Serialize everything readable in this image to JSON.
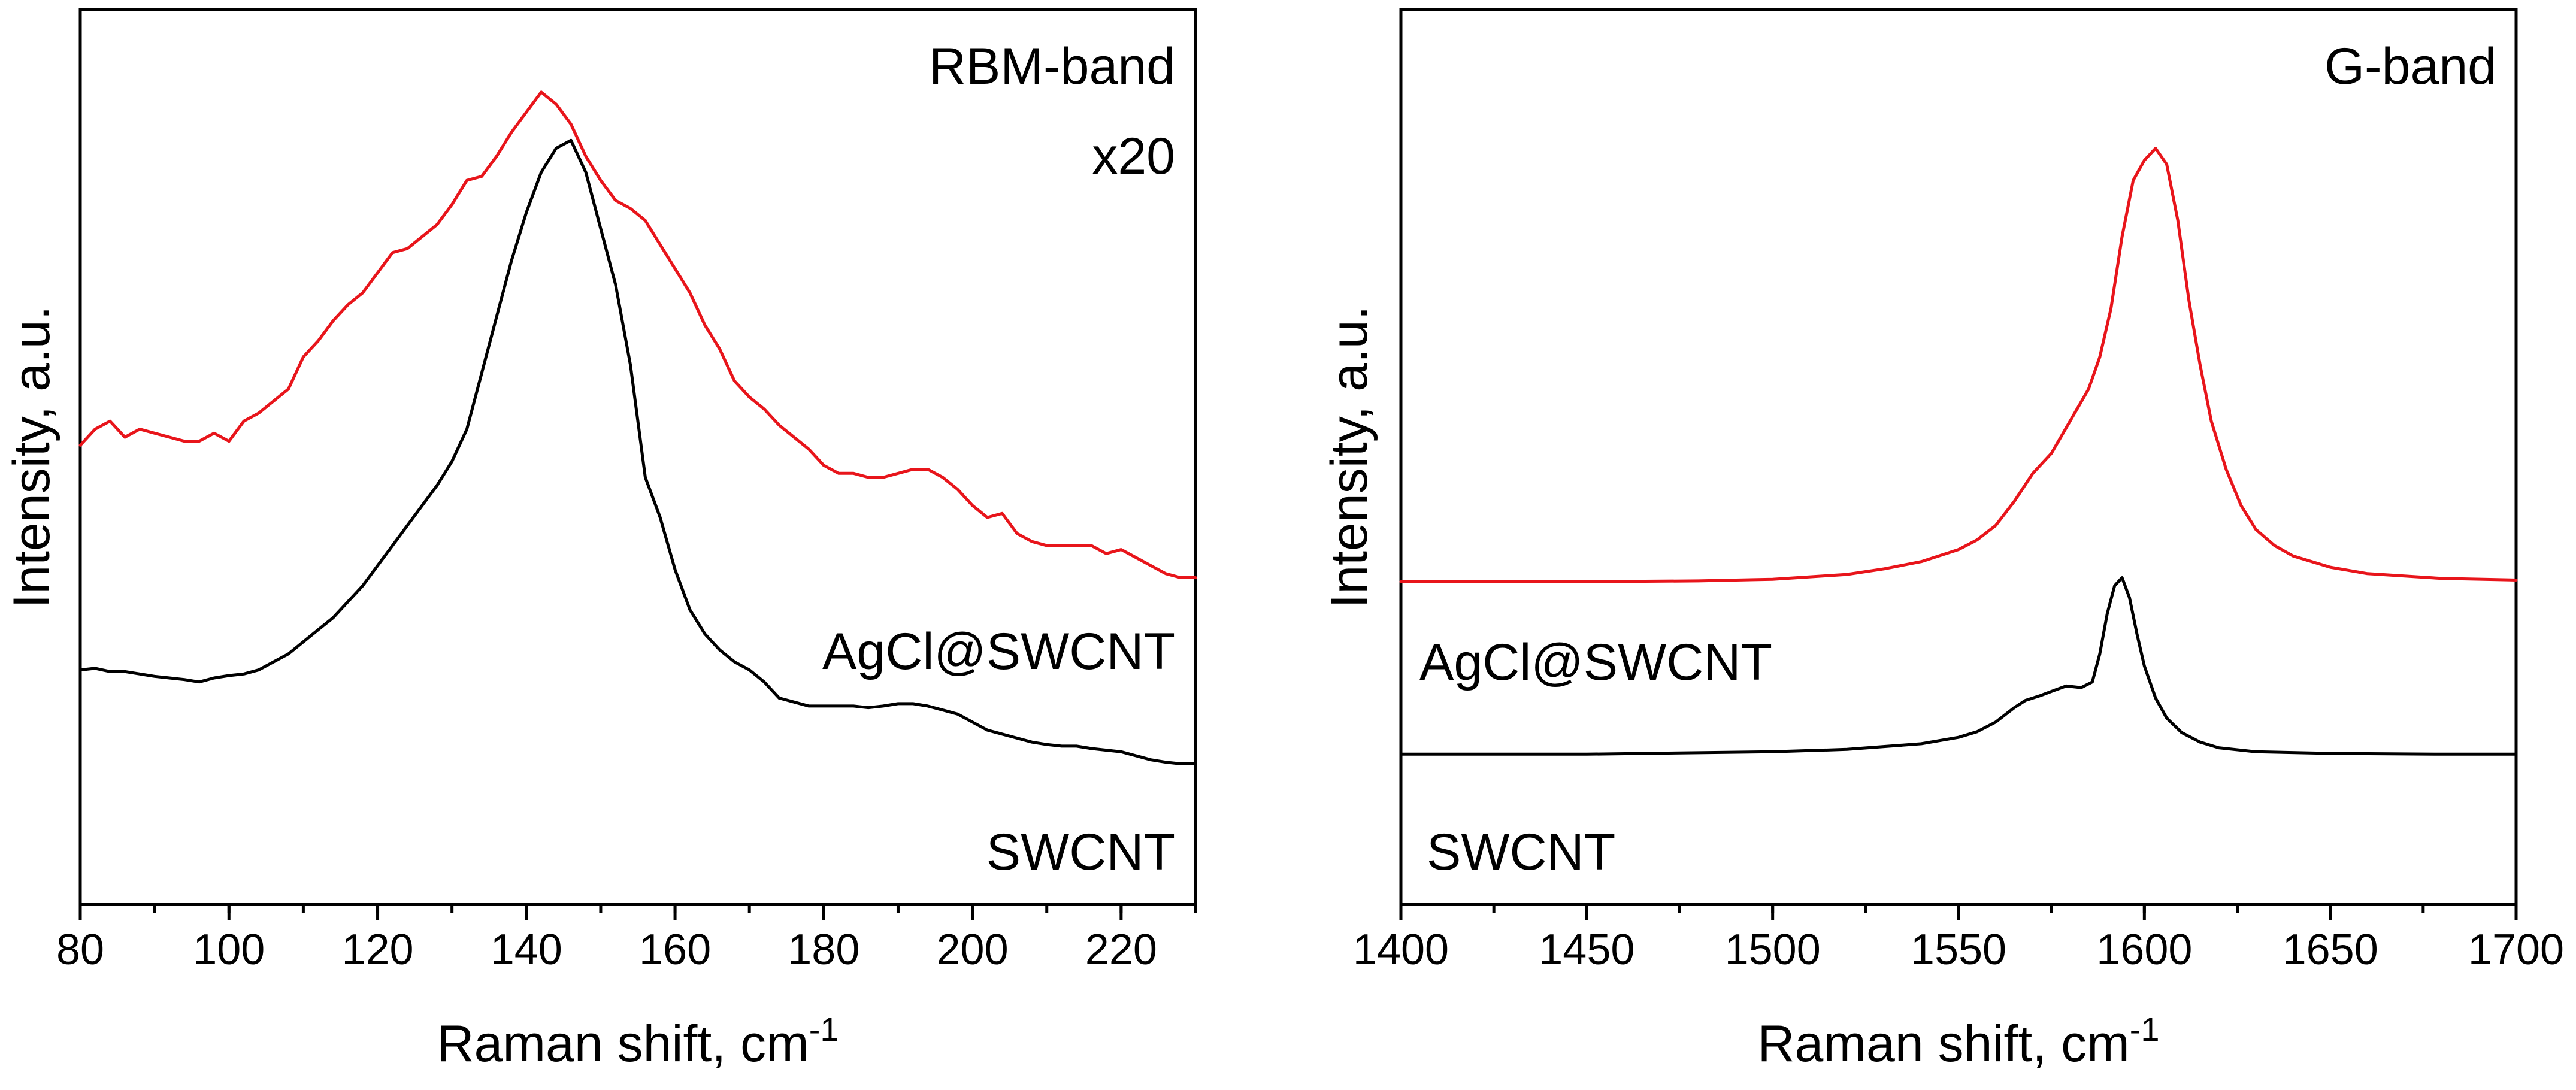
{
  "chart_data": [
    {
      "type": "line",
      "panel": "left",
      "xlabel": "Raman shift, cm",
      "xlabel_superscript": "-1",
      "ylabel": "Intensity, a.u.",
      "xlim": [
        80,
        230
      ],
      "ylim": [
        0,
        100
      ],
      "x_ticks": [
        80,
        100,
        120,
        140,
        160,
        180,
        200,
        220
      ],
      "y_ticks_shown": false,
      "annotations": [
        "RBM-band",
        "x20"
      ],
      "series": [
        {
          "name": "AgCl@SWCNT",
          "color": "#e8151b",
          "points": [
            [
              80,
              49
            ],
            [
              82,
              51
            ],
            [
              84,
              52
            ],
            [
              86,
              50
            ],
            [
              88,
              51
            ],
            [
              90,
              50.5
            ],
            [
              92,
              50
            ],
            [
              94,
              49.5
            ],
            [
              96,
              49.5
            ],
            [
              98,
              50.5
            ],
            [
              100,
              49.5
            ],
            [
              102,
              52
            ],
            [
              104,
              53
            ],
            [
              106,
              54.5
            ],
            [
              108,
              56
            ],
            [
              110,
              60
            ],
            [
              112,
              62
            ],
            [
              114,
              64.5
            ],
            [
              116,
              66.5
            ],
            [
              118,
              68
            ],
            [
              120,
              70.5
            ],
            [
              122,
              73
            ],
            [
              124,
              73.5
            ],
            [
              126,
              75
            ],
            [
              128,
              76.5
            ],
            [
              130,
              79
            ],
            [
              132,
              82
            ],
            [
              134,
              82.5
            ],
            [
              136,
              85
            ],
            [
              138,
              88
            ],
            [
              140,
              90.5
            ],
            [
              142,
              93
            ],
            [
              144,
              91.5
            ],
            [
              146,
              89
            ],
            [
              148,
              85
            ],
            [
              150,
              82
            ],
            [
              152,
              79.5
            ],
            [
              154,
              78.5
            ],
            [
              156,
              77
            ],
            [
              158,
              74
            ],
            [
              160,
              71
            ],
            [
              162,
              68
            ],
            [
              164,
              64
            ],
            [
              166,
              61
            ],
            [
              168,
              57
            ],
            [
              170,
              55
            ],
            [
              172,
              53.5
            ],
            [
              174,
              51.5
            ],
            [
              176,
              50
            ],
            [
              178,
              48.5
            ],
            [
              180,
              46.5
            ],
            [
              182,
              45.5
            ],
            [
              184,
              45.5
            ],
            [
              186,
              45
            ],
            [
              188,
              45
            ],
            [
              190,
              45.5
            ],
            [
              192,
              46
            ],
            [
              194,
              46
            ],
            [
              196,
              45
            ],
            [
              198,
              43.5
            ],
            [
              200,
              41.5
            ],
            [
              202,
              40
            ],
            [
              204,
              40.5
            ],
            [
              206,
              38
            ],
            [
              208,
              37
            ],
            [
              210,
              36.5
            ],
            [
              212,
              36.5
            ],
            [
              214,
              36.5
            ],
            [
              216,
              36.5
            ],
            [
              218,
              35.5
            ],
            [
              220,
              36
            ],
            [
              222,
              35
            ],
            [
              224,
              34
            ],
            [
              226,
              33
            ],
            [
              228,
              32.5
            ],
            [
              230,
              32.5
            ]
          ]
        },
        {
          "name": "SWCNT",
          "color": "#000000",
          "points": [
            [
              80,
              21
            ],
            [
              82,
              21.2
            ],
            [
              84,
              20.8
            ],
            [
              86,
              20.8
            ],
            [
              88,
              20.5
            ],
            [
              90,
              20.2
            ],
            [
              92,
              20
            ],
            [
              94,
              19.8
            ],
            [
              96,
              19.5
            ],
            [
              98,
              20
            ],
            [
              100,
              20.3
            ],
            [
              102,
              20.5
            ],
            [
              104,
              21
            ],
            [
              106,
              22
            ],
            [
              108,
              23
            ],
            [
              110,
              24.5
            ],
            [
              112,
              26
            ],
            [
              114,
              27.5
            ],
            [
              116,
              29.5
            ],
            [
              118,
              31.5
            ],
            [
              120,
              34
            ],
            [
              122,
              36.5
            ],
            [
              124,
              39
            ],
            [
              126,
              41.5
            ],
            [
              128,
              44
            ],
            [
              130,
              47
            ],
            [
              132,
              51
            ],
            [
              134,
              58
            ],
            [
              136,
              65
            ],
            [
              138,
              72
            ],
            [
              140,
              78
            ],
            [
              142,
              83
            ],
            [
              144,
              86
            ],
            [
              146,
              87
            ],
            [
              148,
              83
            ],
            [
              150,
              76
            ],
            [
              152,
              69
            ],
            [
              154,
              59
            ],
            [
              156,
              45
            ],
            [
              158,
              40
            ],
            [
              160,
              33.5
            ],
            [
              162,
              28.5
            ],
            [
              164,
              25.5
            ],
            [
              166,
              23.5
            ],
            [
              168,
              22
            ],
            [
              170,
              21
            ],
            [
              172,
              19.5
            ],
            [
              174,
              17.5
            ],
            [
              176,
              17
            ],
            [
              178,
              16.5
            ],
            [
              180,
              16.5
            ],
            [
              182,
              16.5
            ],
            [
              184,
              16.5
            ],
            [
              186,
              16.3
            ],
            [
              188,
              16.5
            ],
            [
              190,
              16.8
            ],
            [
              192,
              16.8
            ],
            [
              194,
              16.5
            ],
            [
              196,
              16
            ],
            [
              198,
              15.5
            ],
            [
              200,
              14.5
            ],
            [
              202,
              13.5
            ],
            [
              204,
              13
            ],
            [
              206,
              12.5
            ],
            [
              208,
              12
            ],
            [
              210,
              11.7
            ],
            [
              212,
              11.5
            ],
            [
              214,
              11.5
            ],
            [
              216,
              11.2
            ],
            [
              218,
              11
            ],
            [
              220,
              10.8
            ],
            [
              222,
              10.3
            ],
            [
              224,
              9.8
            ],
            [
              226,
              9.5
            ],
            [
              228,
              9.3
            ],
            [
              230,
              9.3
            ]
          ]
        }
      ]
    },
    {
      "type": "line",
      "panel": "right",
      "xlabel": "Raman shift, cm",
      "xlabel_superscript": "-1",
      "ylabel": "Intensity, a.u.",
      "xlim": [
        1400,
        1700
      ],
      "ylim": [
        0,
        100
      ],
      "x_ticks": [
        1400,
        1450,
        1500,
        1550,
        1600,
        1650,
        1700
      ],
      "y_ticks_shown": false,
      "annotations": [
        "G-band"
      ],
      "series": [
        {
          "name": "AgCl@SWCNT",
          "color": "#e8151b",
          "points": [
            [
              1400,
              32
            ],
            [
              1450,
              32
            ],
            [
              1480,
              32.1
            ],
            [
              1500,
              32.3
            ],
            [
              1520,
              32.9
            ],
            [
              1530,
              33.6
            ],
            [
              1540,
              34.5
            ],
            [
              1550,
              36
            ],
            [
              1555,
              37.2
            ],
            [
              1560,
              39
            ],
            [
              1565,
              42
            ],
            [
              1570,
              45.5
            ],
            [
              1575,
              48
            ],
            [
              1580,
              52
            ],
            [
              1585,
              56
            ],
            [
              1588,
              60
            ],
            [
              1591,
              66
            ],
            [
              1594,
              75
            ],
            [
              1597,
              82
            ],
            [
              1600,
              84.5
            ],
            [
              1603,
              86
            ],
            [
              1606,
              84
            ],
            [
              1609,
              77
            ],
            [
              1612,
              67
            ],
            [
              1615,
              59
            ],
            [
              1618,
              52
            ],
            [
              1622,
              46
            ],
            [
              1626,
              41.5
            ],
            [
              1630,
              38.5
            ],
            [
              1635,
              36.5
            ],
            [
              1640,
              35.2
            ],
            [
              1650,
              33.8
            ],
            [
              1660,
              33
            ],
            [
              1680,
              32.4
            ],
            [
              1700,
              32.2
            ]
          ]
        },
        {
          "name": "SWCNT",
          "color": "#000000",
          "points": [
            [
              1400,
              10.5
            ],
            [
              1450,
              10.5
            ],
            [
              1500,
              10.8
            ],
            [
              1520,
              11.1
            ],
            [
              1540,
              11.8
            ],
            [
              1550,
              12.6
            ],
            [
              1555,
              13.3
            ],
            [
              1560,
              14.5
            ],
            [
              1565,
              16.3
            ],
            [
              1568,
              17.2
            ],
            [
              1572,
              17.8
            ],
            [
              1576,
              18.5
            ],
            [
              1579,
              19
            ],
            [
              1583,
              18.8
            ],
            [
              1586,
              19.5
            ],
            [
              1588,
              23
            ],
            [
              1590,
              28
            ],
            [
              1592,
              31.5
            ],
            [
              1594,
              32.5
            ],
            [
              1596,
              30
            ],
            [
              1598,
              25.5
            ],
            [
              1600,
              21.5
            ],
            [
              1603,
              17.5
            ],
            [
              1606,
              15
            ],
            [
              1610,
              13.2
            ],
            [
              1615,
              12
            ],
            [
              1620,
              11.3
            ],
            [
              1630,
              10.8
            ],
            [
              1650,
              10.6
            ],
            [
              1680,
              10.5
            ],
            [
              1700,
              10.5
            ]
          ]
        }
      ]
    }
  ]
}
